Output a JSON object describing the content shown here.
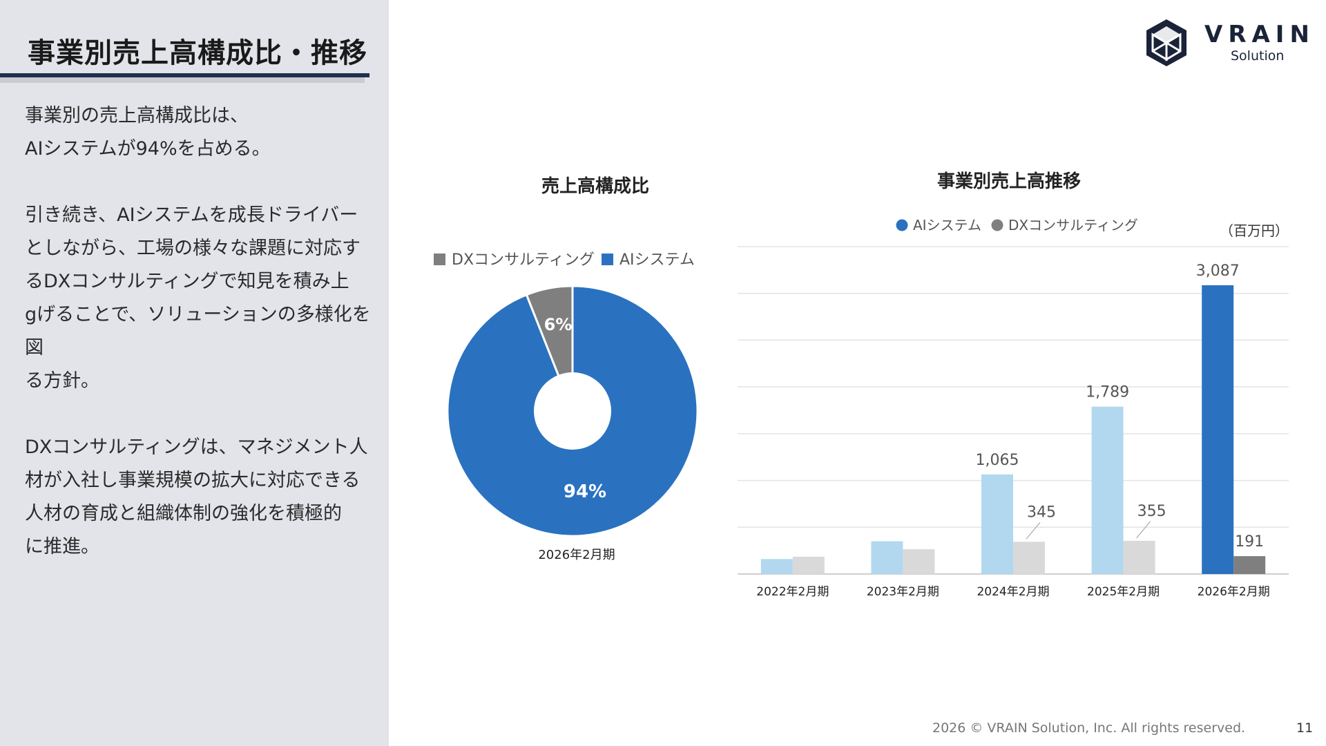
{
  "page": {
    "title": "事業別売上高構成比・推移",
    "description": [
      "事業別の売上高構成比は、\nAIシステムが94%を占める。",
      "引き続き、AIシステムを成長ドライバー\nとしながら、工場の様々な課題に対応す\nるDXコンサルティングで知見を積み上\ngげることで、ソリューションの多様化を図\nる方針。",
      "DXコンサルティングは、マネジメント人\n材が入社し事業規模の拡大に対応できる\n人材の育成と組織体制の強化を積極的\nに推進。"
    ],
    "footer": "2026 © VRAIN Solution, Inc. All rights reserved.",
    "page_number": "11"
  },
  "logo": {
    "name": "VRAIN",
    "sub": "Solution",
    "icon": "vrain-logo-icon"
  },
  "colors": {
    "ai_highlight": "#2a72c0",
    "ai_light": "#b1d8ef",
    "dx_highlight": "#7f7f7f",
    "dx_light": "#d9d9d9",
    "left_panel": "#e2e4ea",
    "title_rule": "#1f2f4f"
  },
  "chart_data": [
    {
      "type": "pie",
      "title": "売上高構成比",
      "xlabel": "2026年2月期",
      "legend": [
        "DXコンサルティング",
        "AIシステム"
      ],
      "legend_position": "top",
      "slices": [
        {
          "name": "AIシステム",
          "value": 94,
          "label": "94%"
        },
        {
          "name": "DXコンサルティング",
          "value": 6,
          "label": "6%"
        }
      ]
    },
    {
      "type": "bar",
      "title": "事業別売上高推移",
      "unit": "（百万円）",
      "legend": [
        "AIシステム",
        "DXコンサルティング"
      ],
      "legend_position": "top",
      "grid": true,
      "categories": [
        "2022年2月期",
        "2023年2月期",
        "2024年2月期",
        "2025年2月期",
        "2026年2月期"
      ],
      "ylim": [
        0,
        3500
      ],
      "series": [
        {
          "name": "AIシステム",
          "values": [
            160,
            350,
            1065,
            1789,
            3087
          ],
          "labels": [
            "",
            "",
            "1,065",
            "1,789",
            "3,087"
          ]
        },
        {
          "name": "DXコンサルティング",
          "values": [
            185,
            265,
            345,
            355,
            191
          ],
          "labels": [
            "",
            "",
            "345",
            "355",
            "191"
          ]
        }
      ]
    }
  ]
}
